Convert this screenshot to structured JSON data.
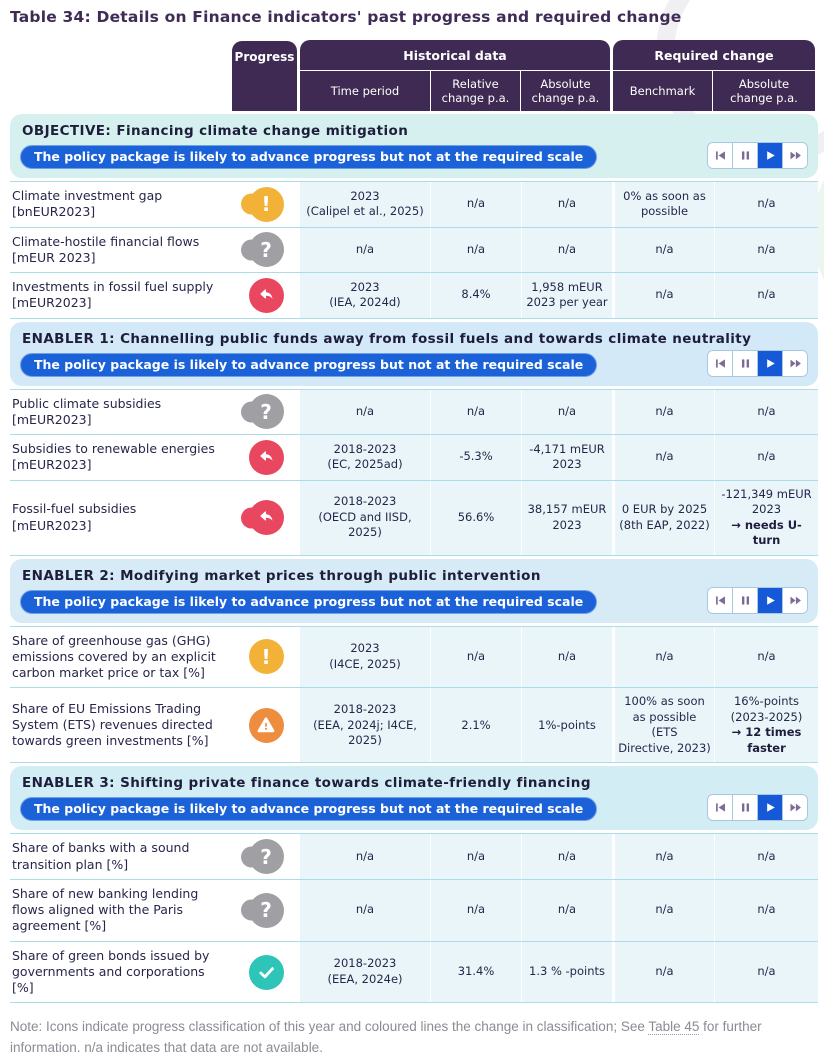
{
  "page": {
    "title": "Table 34: Details on Finance indicators' past progress and required change",
    "note": {
      "before": "Note: Icons indicate progress classification of this year and coloured lines the change in classification; See ",
      "link": "Table 45",
      "after": " for further information. n/a indicates that data are not available."
    }
  },
  "colors": {
    "header_bg": "#3e2a52",
    "accent_blue": "#1b62d8",
    "objective_bg": "#d5f0ee",
    "enabler_bg": "#d4e9f7",
    "cell_bg": "#eaf5f9",
    "status_yellow": "#f2b238",
    "status_gray": "#a0a0a4",
    "status_red": "#e94760",
    "status_orange": "#ee8d3d",
    "status_teal": "#2cc5b8"
  },
  "header": {
    "progress": "Progress",
    "historical": {
      "label": "Historical data",
      "columns": [
        "Time period",
        "Relative change p.a.",
        "Absolute change p.a."
      ]
    },
    "required": {
      "label": "Required change",
      "columns": [
        "Benchmark",
        "Absolute change p.a."
      ]
    }
  },
  "player": {
    "buttons": [
      "skip-back",
      "pause",
      "play",
      "fast-forward"
    ],
    "active": "play"
  },
  "sections": [
    {
      "theme": "objective",
      "title": "OBJECTIVE: Financing climate change mitigation",
      "status": "The policy package is likely to advance progress but not at the required scale",
      "rows": [
        {
          "name": "Climate investment gap [bnEUR2023]",
          "icon": "exclamation",
          "color": "#f2b238",
          "double": true,
          "cells": [
            [
              "2023",
              "(Calipel et al., 2025)"
            ],
            [
              "n/a"
            ],
            [
              "n/a"
            ],
            [
              "0% as soon as",
              "possible"
            ],
            [
              "n/a"
            ]
          ]
        },
        {
          "name": "Climate-hostile financial flows [mEUR 2023]",
          "icon": "question",
          "color": "#a0a0a4",
          "double": true,
          "cells": [
            [
              "n/a"
            ],
            [
              "n/a"
            ],
            [
              "n/a"
            ],
            [
              "n/a"
            ],
            [
              "n/a"
            ]
          ]
        },
        {
          "name": "Investments in fossil fuel supply [mEUR2023]",
          "icon": "uturn",
          "color": "#e94760",
          "double": false,
          "cells": [
            [
              "2023",
              "(IEA, 2024d)"
            ],
            [
              "8.4%"
            ],
            [
              "1,958 mEUR",
              "2023 per year"
            ],
            [
              "n/a"
            ],
            [
              "n/a"
            ]
          ]
        }
      ]
    },
    {
      "theme": "enabler1",
      "title": "ENABLER 1: Channelling public funds away from fossil fuels and towards climate neutrality",
      "status": "The policy package is likely to advance progress but not at the required scale",
      "rows": [
        {
          "name": "Public climate subsidies [mEUR2023]",
          "icon": "question",
          "color": "#a0a0a4",
          "double": true,
          "cells": [
            [
              "n/a"
            ],
            [
              "n/a"
            ],
            [
              "n/a"
            ],
            [
              "n/a"
            ],
            [
              "n/a"
            ]
          ]
        },
        {
          "name": "Subsidies to renewable energies [mEUR2023]",
          "icon": "uturn",
          "color": "#e94760",
          "double": false,
          "cells": [
            [
              "2018-2023",
              "(EC, 2025ad)"
            ],
            [
              "-5.3%"
            ],
            [
              "-4,171 mEUR",
              "2023"
            ],
            [
              "n/a"
            ],
            [
              "n/a"
            ]
          ]
        },
        {
          "name": "Fossil-fuel subsidies [mEUR2023]",
          "icon": "uturn",
          "color": "#e94760",
          "double": true,
          "cells": [
            [
              "2018-2023",
              "(OECD and IISD, 2025)"
            ],
            [
              "56.6%"
            ],
            [
              "38,157 mEUR",
              "2023"
            ],
            [
              "0 EUR by 2025",
              "(8th EAP, 2022)"
            ],
            [
              "-121,349 mEUR",
              "2023"
            ]
          ],
          "bold_note": {
            "cell": 4,
            "text": "→ needs U-turn"
          }
        }
      ]
    },
    {
      "theme": "enabler2",
      "title": "ENABLER 2: Modifying market prices through public intervention",
      "status": "The policy package is likely to advance progress but not at the required scale",
      "rows": [
        {
          "name": "Share of greenhouse gas (GHG) emissions covered by an explicit carbon market price or tax [%]",
          "icon": "exclamation",
          "color": "#f2b238",
          "double": false,
          "cells": [
            [
              "2023",
              "(I4CE, 2025)"
            ],
            [
              "n/a"
            ],
            [
              "n/a"
            ],
            [
              "n/a"
            ],
            [
              "n/a"
            ]
          ]
        },
        {
          "name": "Share of EU Emissions Trading System (ETS) revenues directed towards green investments [%]",
          "icon": "warning-triangle",
          "color": "#ee8d3d",
          "double": false,
          "cells": [
            [
              "2018-2023",
              "(EEA, 2024j; I4CE, 2025)"
            ],
            [
              "2.1%"
            ],
            [
              "1%-points"
            ],
            [
              "100% as soon",
              "as possible (ETS",
              "Directive, 2023)"
            ],
            [
              "16%-points",
              "(2023-2025)"
            ]
          ],
          "bold_note": {
            "cell": 4,
            "text": "→ 12 times faster"
          }
        }
      ]
    },
    {
      "theme": "enabler3",
      "title": "ENABLER 3: Shifting private finance towards climate-friendly financing",
      "status": "The policy package is likely to advance progress but not at the required scale",
      "rows": [
        {
          "name": "Share of banks with a sound transition plan [%]",
          "icon": "question",
          "color": "#a0a0a4",
          "double": true,
          "cells": [
            [
              "n/a"
            ],
            [
              "n/a"
            ],
            [
              "n/a"
            ],
            [
              "n/a"
            ],
            [
              "n/a"
            ]
          ]
        },
        {
          "name": "Share of new banking lending flows aligned with the Paris agreement [%]",
          "icon": "question",
          "color": "#a0a0a4",
          "double": true,
          "cells": [
            [
              "n/a"
            ],
            [
              "n/a"
            ],
            [
              "n/a"
            ],
            [
              "n/a"
            ],
            [
              "n/a"
            ]
          ]
        },
        {
          "name": "Share of green bonds issued by governments and corporations [%]",
          "icon": "check",
          "color": "#2cc5b8",
          "double": false,
          "cells": [
            [
              "2018-2023",
              "(EEA, 2024e)"
            ],
            [
              "31.4%"
            ],
            [
              "1.3 % -points"
            ],
            [
              "n/a"
            ],
            [
              "n/a"
            ]
          ]
        }
      ]
    }
  ]
}
